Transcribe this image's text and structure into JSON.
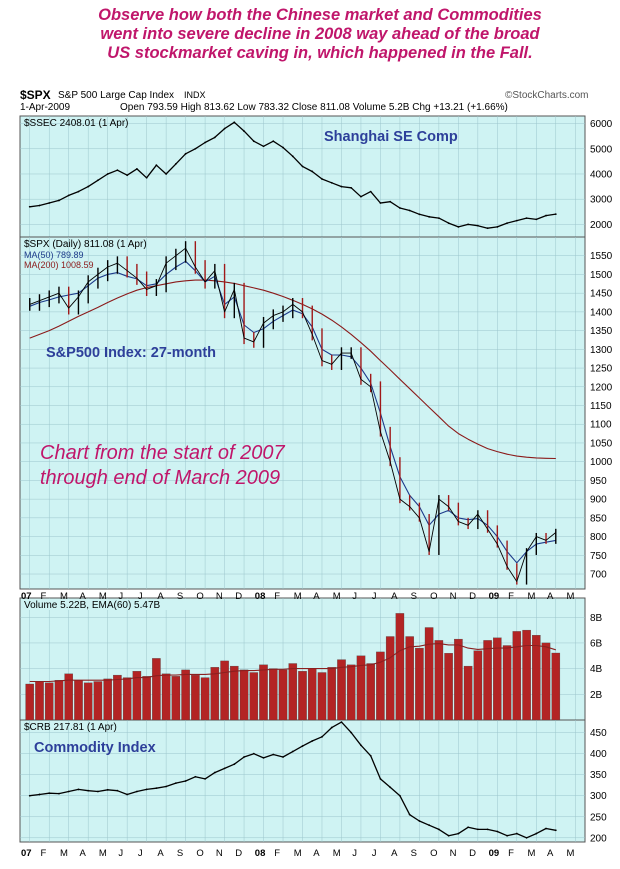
{
  "headline": [
    "Observe how both the Chinese market and Commodities",
    "went into severe decline in 2008 way ahead of the broad",
    "US stockmarket caving in, which happened in the Fall."
  ],
  "header": {
    "symbol": "$SPX",
    "name": "S&P 500 Large Cap Index",
    "exchange": "INDX",
    "source": "©StockCharts.com",
    "date": "1-Apr-2009",
    "stats": "Open 793.59   High 813.62   Low 783.32   Close 811.08   Volume 5.2B   Chg +13.21 (+1.66%)"
  },
  "colors": {
    "panel_bg": "#cff3f3",
    "grid": "#9cc6cc",
    "price": "#000000",
    "ma50": "#1c3a8a",
    "ma200": "#8b1a1a",
    "volume": "#b32424",
    "ema": "#8b2020",
    "annotation": "#c0166b",
    "label": "#2d3f9a"
  },
  "x_axis": {
    "months": [
      "07",
      "F",
      "M",
      "A",
      "M",
      "J",
      "J",
      "A",
      "S",
      "O",
      "N",
      "D",
      "08",
      "F",
      "M",
      "A",
      "M",
      "J",
      "J",
      "A",
      "S",
      "O",
      "N",
      "D",
      "09",
      "F",
      "M",
      "A",
      "M"
    ]
  },
  "chart_data": [
    {
      "type": "line",
      "legend": "$SSEC 2408.01 (1 Apr)",
      "annotation": "Shanghai SE Comp",
      "y_ticks": [
        "6000",
        "5000",
        "4000",
        "3000",
        "2000"
      ],
      "ylim": [
        1500,
        6300
      ],
      "x": [
        0,
        0.5,
        1,
        1.5,
        2,
        2.5,
        3,
        3.5,
        4,
        4.5,
        5,
        5.5,
        6,
        6.5,
        7,
        7.5,
        8,
        8.5,
        9,
        9.5,
        10,
        10.5,
        11,
        11.5,
        12,
        12.5,
        13,
        13.5,
        14,
        14.5,
        15,
        15.5,
        16,
        16.5,
        17,
        17.5,
        18,
        18.5,
        19,
        19.5,
        20,
        20.5,
        21,
        21.5,
        22,
        22.5,
        23,
        23.5,
        24,
        24.5,
        25,
        25.5,
        26,
        26.5,
        27
      ],
      "values": [
        2700,
        2750,
        2850,
        2950,
        3150,
        3300,
        3500,
        3750,
        4000,
        4150,
        3950,
        4200,
        3850,
        4350,
        4000,
        4400,
        4800,
        5000,
        5250,
        5450,
        5800,
        6050,
        5700,
        5300,
        5100,
        5300,
        5050,
        4700,
        4300,
        4100,
        3800,
        3650,
        3500,
        3450,
        3100,
        3300,
        2850,
        2900,
        2650,
        2550,
        2400,
        2300,
        2250,
        2050,
        1900,
        2000,
        1950,
        1850,
        1900,
        2050,
        2150,
        2250,
        2200,
        2350,
        2408
      ]
    },
    {
      "type": "line",
      "legend": "$SPX (Daily) 811.08 (1 Apr)",
      "ma50_legend": "MA(50) 789.89",
      "ma200_legend": "MA(200) 1008.59",
      "annotation": "S&P500 Index: 27-month",
      "note_lines": [
        "Chart from the start  of 2007",
        "through end of March 2009"
      ],
      "y_ticks": [
        "1550",
        "1500",
        "1450",
        "1400",
        "1350",
        "1300",
        "1250",
        "1200",
        "1150",
        "1100",
        "1050",
        "1000",
        "950",
        "900",
        "850",
        "800",
        "750",
        "700"
      ],
      "ylim": [
        660,
        1600
      ],
      "x": [
        0,
        0.5,
        1,
        1.5,
        2,
        2.5,
        3,
        3.5,
        4,
        4.5,
        5,
        5.5,
        6,
        6.5,
        7,
        7.5,
        8,
        8.5,
        9,
        9.5,
        10,
        10.5,
        11,
        11.5,
        12,
        12.5,
        13,
        13.5,
        14,
        14.5,
        15,
        15.5,
        16,
        16.5,
        17,
        17.5,
        18,
        18.5,
        19,
        19.5,
        20,
        20.5,
        21,
        21.5,
        22,
        22.5,
        23,
        23.5,
        24,
        24.5,
        25,
        25.5,
        26,
        26.5,
        27
      ],
      "values": [
        1420,
        1430,
        1440,
        1450,
        1410,
        1440,
        1480,
        1500,
        1520,
        1530,
        1510,
        1490,
        1460,
        1470,
        1530,
        1550,
        1570,
        1520,
        1480,
        1510,
        1400,
        1460,
        1330,
        1320,
        1370,
        1390,
        1400,
        1420,
        1400,
        1340,
        1270,
        1260,
        1290,
        1290,
        1220,
        1200,
        1080,
        1000,
        900,
        880,
        850,
        760,
        900,
        880,
        840,
        830,
        860,
        820,
        780,
        720,
        680,
        760,
        800,
        790,
        811
      ],
      "ma50": [
        1415,
        1425,
        1432,
        1440,
        1445,
        1450,
        1470,
        1490,
        1500,
        1505,
        1495,
        1488,
        1470,
        1475,
        1500,
        1520,
        1535,
        1510,
        1480,
        1495,
        1420,
        1440,
        1365,
        1345,
        1355,
        1375,
        1390,
        1405,
        1395,
        1360,
        1300,
        1285,
        1285,
        1280,
        1250,
        1210,
        1130,
        1040,
        960,
        910,
        880,
        830,
        860,
        870,
        850,
        845,
        848,
        830,
        800,
        760,
        730,
        760,
        780,
        785,
        789.89
      ],
      "ma200": [
        1330,
        1340,
        1350,
        1362,
        1375,
        1388,
        1400,
        1412,
        1425,
        1437,
        1448,
        1458,
        1465,
        1470,
        1475,
        1480,
        1483,
        1485,
        1485,
        1483,
        1480,
        1476,
        1470,
        1464,
        1458,
        1450,
        1441,
        1431,
        1420,
        1408,
        1394,
        1378,
        1360,
        1340,
        1318,
        1295,
        1270,
        1245,
        1220,
        1195,
        1170,
        1145,
        1120,
        1095,
        1075,
        1060,
        1047,
        1035,
        1027,
        1020,
        1015,
        1012,
        1010,
        1009,
        1008.59
      ]
    },
    {
      "type": "bar",
      "legend": "Volume 5.22B, EMA(60) 5.47B",
      "y_ticks": [
        "8B",
        "6B",
        "4B",
        "2B"
      ],
      "ylim": [
        0,
        9.5
      ],
      "x": [
        0,
        0.5,
        1,
        1.5,
        2,
        2.5,
        3,
        3.5,
        4,
        4.5,
        5,
        5.5,
        6,
        6.5,
        7,
        7.5,
        8,
        8.5,
        9,
        9.5,
        10,
        10.5,
        11,
        11.5,
        12,
        12.5,
        13,
        13.5,
        14,
        14.5,
        15,
        15.5,
        16,
        16.5,
        17,
        17.5,
        18,
        18.5,
        19,
        19.5,
        20,
        20.5,
        21,
        21.5,
        22,
        22.5,
        23,
        23.5,
        24,
        24.5,
        25,
        25.5,
        26,
        26.5,
        27
      ],
      "values": [
        2.8,
        3.0,
        2.9,
        3.1,
        3.6,
        3.1,
        2.9,
        3.0,
        3.2,
        3.5,
        3.3,
        3.8,
        3.4,
        4.8,
        3.6,
        3.4,
        3.9,
        3.5,
        3.3,
        4.1,
        4.6,
        4.2,
        3.9,
        3.7,
        4.3,
        4.0,
        3.9,
        4.4,
        3.8,
        4.0,
        3.7,
        4.1,
        4.7,
        4.3,
        5.0,
        4.4,
        5.3,
        6.5,
        8.3,
        6.5,
        5.6,
        7.2,
        6.2,
        5.2,
        6.3,
        4.2,
        5.4,
        6.2,
        6.4,
        5.8,
        6.9,
        7.0,
        6.6,
        6.0,
        5.22
      ],
      "ema": [
        3.0,
        3.0,
        3.0,
        3.05,
        3.1,
        3.1,
        3.1,
        3.1,
        3.1,
        3.15,
        3.2,
        3.3,
        3.3,
        3.45,
        3.5,
        3.5,
        3.55,
        3.55,
        3.55,
        3.6,
        3.7,
        3.8,
        3.85,
        3.85,
        3.9,
        3.95,
        3.95,
        4.0,
        4.0,
        4.0,
        4.0,
        4.0,
        4.1,
        4.15,
        4.25,
        4.3,
        4.5,
        4.85,
        5.4,
        5.7,
        5.75,
        5.9,
        5.95,
        5.85,
        5.85,
        5.6,
        5.5,
        5.55,
        5.6,
        5.6,
        5.7,
        5.8,
        5.8,
        5.7,
        5.47
      ]
    },
    {
      "type": "line",
      "legend": "$CRB 217.81 (1 Apr)",
      "annotation": "Commodity Index",
      "y_ticks": [
        "450",
        "400",
        "350",
        "300",
        "250",
        "200"
      ],
      "ylim": [
        190,
        480
      ],
      "x": [
        0,
        0.5,
        1,
        1.5,
        2,
        2.5,
        3,
        3.5,
        4,
        4.5,
        5,
        5.5,
        6,
        6.5,
        7,
        7.5,
        8,
        8.5,
        9,
        9.5,
        10,
        10.5,
        11,
        11.5,
        12,
        12.5,
        13,
        13.5,
        14,
        14.5,
        15,
        15.5,
        16,
        16.5,
        17,
        17.5,
        18,
        18.5,
        19,
        19.5,
        20,
        20.5,
        21,
        21.5,
        22,
        22.5,
        23,
        23.5,
        24,
        24.5,
        25,
        25.5,
        26,
        26.5,
        27
      ],
      "values": [
        300,
        303,
        306,
        305,
        310,
        315,
        312,
        310,
        314,
        312,
        303,
        310,
        315,
        318,
        322,
        330,
        335,
        345,
        340,
        355,
        365,
        375,
        392,
        400,
        390,
        398,
        392,
        405,
        418,
        430,
        440,
        462,
        475,
        450,
        420,
        395,
        340,
        320,
        300,
        255,
        240,
        230,
        220,
        205,
        210,
        225,
        220,
        220,
        215,
        205,
        210,
        200,
        210,
        222,
        217.81
      ]
    }
  ]
}
